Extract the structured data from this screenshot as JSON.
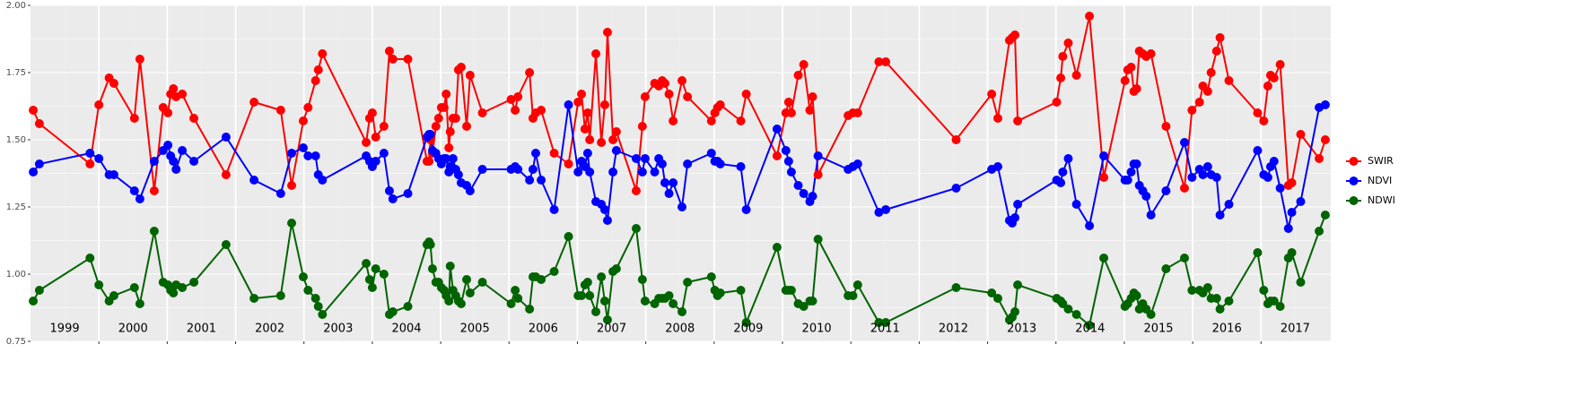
{
  "chart_data": {
    "type": "line",
    "x": [
      1999.04,
      1999.13,
      1999.87,
      2000.0,
      2000.15,
      2000.22,
      2000.52,
      2000.6,
      2000.81,
      2000.94,
      2001.01,
      2001.05,
      2001.09,
      2001.13,
      2001.22,
      2001.39,
      2001.86,
      2002.27,
      2002.66,
      2002.82,
      2002.99,
      2003.06,
      2003.17,
      2003.21,
      2003.27,
      2003.91,
      2003.96,
      2004.0,
      2004.05,
      2004.17,
      2004.25,
      2004.3,
      2004.52,
      2004.8,
      2004.83,
      2004.85,
      2004.88,
      2004.93,
      2004.97,
      2005.01,
      2005.05,
      2005.08,
      2005.12,
      2005.14,
      2005.18,
      2005.22,
      2005.26,
      2005.3,
      2005.38,
      2005.43,
      2005.61,
      2006.03,
      2006.09,
      2006.13,
      2006.3,
      2006.35,
      2006.39,
      2006.47,
      2006.66,
      2006.87,
      2007.01,
      2007.06,
      2007.11,
      2007.15,
      2007.18,
      2007.27,
      2007.35,
      2007.4,
      2007.44,
      2007.52,
      2007.57,
      2007.86,
      2007.95,
      2007.99,
      2008.13,
      2008.19,
      2008.24,
      2008.28,
      2008.34,
      2008.4,
      2008.53,
      2008.61,
      2008.96,
      2009.01,
      2009.05,
      2009.09,
      2009.39,
      2009.47,
      2009.92,
      2010.05,
      2010.09,
      2010.13,
      2010.23,
      2010.31,
      2010.4,
      2010.44,
      2010.52,
      2010.96,
      2011.03,
      2011.1,
      2011.41,
      2011.51,
      2012.54,
      2013.06,
      2013.15,
      2013.32,
      2013.36,
      2013.4,
      2013.44,
      2014.01,
      2014.07,
      2014.1,
      2014.18,
      2014.3,
      2014.49,
      2014.7,
      2015.01,
      2015.05,
      2015.1,
      2015.14,
      2015.18,
      2015.22,
      2015.27,
      2015.32,
      2015.39,
      2015.61,
      2015.88,
      2015.99,
      2016.1,
      2016.15,
      2016.22,
      2016.27,
      2016.35,
      2016.4,
      2016.53,
      2016.95,
      2017.04,
      2017.1,
      2017.14,
      2017.19,
      2017.28,
      2017.4,
      2017.45,
      2017.58,
      2017.85,
      2017.94
    ],
    "series": [
      {
        "name": "SWIR",
        "color": "#ff0000",
        "values": [
          1.61,
          1.56,
          1.41,
          1.63,
          1.73,
          1.71,
          1.58,
          1.8,
          1.31,
          1.62,
          1.6,
          1.67,
          1.69,
          1.66,
          1.67,
          1.58,
          1.37,
          1.64,
          1.61,
          1.33,
          1.57,
          1.62,
          1.72,
          1.76,
          1.82,
          1.49,
          1.58,
          1.6,
          1.51,
          1.55,
          1.83,
          1.8,
          1.8,
          1.42,
          1.42,
          1.5,
          1.45,
          1.55,
          1.58,
          1.62,
          1.62,
          1.67,
          1.47,
          1.53,
          1.58,
          1.58,
          1.76,
          1.77,
          1.55,
          1.74,
          1.6,
          1.65,
          1.61,
          1.66,
          1.75,
          1.58,
          1.6,
          1.61,
          1.45,
          1.41,
          1.64,
          1.67,
          1.54,
          1.6,
          1.5,
          1.82,
          1.49,
          1.63,
          1.9,
          1.5,
          1.53,
          1.31,
          1.55,
          1.66,
          1.71,
          1.7,
          1.72,
          1.71,
          1.67,
          1.57,
          1.72,
          1.66,
          1.57,
          1.6,
          1.62,
          1.63,
          1.57,
          1.67,
          1.44,
          1.6,
          1.64,
          1.6,
          1.74,
          1.78,
          1.61,
          1.66,
          1.37,
          1.59,
          1.6,
          1.6,
          1.79,
          1.79,
          1.5,
          1.67,
          1.58,
          1.87,
          1.88,
          1.89,
          1.57,
          1.64,
          1.73,
          1.81,
          1.86,
          1.74,
          1.96,
          1.36,
          1.72,
          1.76,
          1.77,
          1.68,
          1.69,
          1.83,
          1.82,
          1.81,
          1.82,
          1.55,
          1.32,
          1.61,
          1.64,
          1.7,
          1.68,
          1.75,
          1.83,
          1.88,
          1.72,
          1.6,
          1.57,
          1.7,
          1.74,
          1.73,
          1.78,
          1.33,
          1.34,
          1.52,
          1.43,
          1.5
        ]
      },
      {
        "name": "NDVI",
        "color": "#0000ff",
        "values": [
          1.38,
          1.41,
          1.45,
          1.43,
          1.37,
          1.37,
          1.31,
          1.28,
          1.42,
          1.46,
          1.48,
          1.44,
          1.42,
          1.39,
          1.46,
          1.42,
          1.51,
          1.35,
          1.3,
          1.45,
          1.47,
          1.44,
          1.44,
          1.37,
          1.35,
          1.44,
          1.42,
          1.4,
          1.42,
          1.45,
          1.31,
          1.28,
          1.3,
          1.51,
          1.52,
          1.52,
          1.46,
          1.45,
          1.43,
          1.41,
          1.43,
          1.43,
          1.38,
          1.4,
          1.43,
          1.39,
          1.37,
          1.34,
          1.33,
          1.31,
          1.39,
          1.39,
          1.4,
          1.39,
          1.35,
          1.39,
          1.45,
          1.35,
          1.24,
          1.63,
          1.38,
          1.42,
          1.4,
          1.45,
          1.38,
          1.27,
          1.26,
          1.24,
          1.2,
          1.38,
          1.46,
          1.43,
          1.38,
          1.43,
          1.38,
          1.43,
          1.41,
          1.34,
          1.3,
          1.34,
          1.25,
          1.41,
          1.45,
          1.42,
          1.42,
          1.41,
          1.4,
          1.24,
          1.54,
          1.46,
          1.42,
          1.38,
          1.33,
          1.3,
          1.27,
          1.29,
          1.44,
          1.39,
          1.4,
          1.41,
          1.23,
          1.24,
          1.32,
          1.39,
          1.4,
          1.2,
          1.19,
          1.21,
          1.26,
          1.35,
          1.34,
          1.38,
          1.43,
          1.26,
          1.18,
          1.44,
          1.35,
          1.35,
          1.38,
          1.41,
          1.41,
          1.33,
          1.31,
          1.29,
          1.22,
          1.31,
          1.49,
          1.36,
          1.39,
          1.37,
          1.4,
          1.37,
          1.36,
          1.22,
          1.26,
          1.46,
          1.37,
          1.36,
          1.4,
          1.42,
          1.32,
          1.17,
          1.23,
          1.27,
          1.62,
          1.63
        ]
      },
      {
        "name": "NDWI",
        "color": "#006400",
        "values": [
          0.9,
          0.94,
          1.06,
          0.96,
          0.9,
          0.92,
          0.95,
          0.89,
          1.16,
          0.97,
          0.96,
          0.94,
          0.93,
          0.96,
          0.95,
          0.97,
          1.11,
          0.91,
          0.92,
          1.19,
          0.99,
          0.94,
          0.91,
          0.88,
          0.85,
          1.04,
          0.98,
          0.95,
          1.02,
          1.0,
          0.85,
          0.86,
          0.88,
          1.11,
          1.12,
          1.11,
          1.02,
          0.97,
          0.97,
          0.95,
          0.94,
          0.92,
          0.9,
          1.03,
          0.94,
          0.92,
          0.9,
          0.89,
          0.98,
          0.93,
          0.97,
          0.89,
          0.94,
          0.91,
          0.87,
          0.99,
          0.99,
          0.98,
          1.01,
          1.14,
          0.92,
          0.92,
          0.96,
          0.97,
          0.92,
          0.86,
          0.99,
          0.9,
          0.83,
          1.01,
          1.02,
          1.17,
          0.98,
          0.9,
          0.89,
          0.91,
          0.91,
          0.91,
          0.92,
          0.89,
          0.86,
          0.97,
          0.99,
          0.94,
          0.92,
          0.93,
          0.94,
          0.82,
          1.1,
          0.94,
          0.94,
          0.94,
          0.89,
          0.88,
          0.9,
          0.9,
          1.13,
          0.92,
          0.92,
          0.96,
          0.82,
          0.82,
          0.95,
          0.93,
          0.91,
          0.83,
          0.84,
          0.86,
          0.96,
          0.91,
          0.9,
          0.89,
          0.87,
          0.85,
          0.81,
          1.06,
          0.88,
          0.89,
          0.91,
          0.93,
          0.92,
          0.87,
          0.89,
          0.87,
          0.85,
          1.02,
          1.06,
          0.94,
          0.94,
          0.93,
          0.95,
          0.91,
          0.91,
          0.87,
          0.9,
          1.08,
          0.94,
          0.89,
          0.9,
          0.9,
          0.88,
          1.06,
          1.08,
          0.97,
          1.16,
          1.22
        ]
      }
    ],
    "xlim": [
      1999,
      2018.02
    ],
    "xticks": [
      {
        "value": 1999.5,
        "label": "1999"
      },
      {
        "value": 2000.5,
        "label": "2000"
      },
      {
        "value": 2001.5,
        "label": "2001"
      },
      {
        "value": 2002.5,
        "label": "2002"
      },
      {
        "value": 2003.5,
        "label": "2003"
      },
      {
        "value": 2004.5,
        "label": "2004"
      },
      {
        "value": 2005.5,
        "label": "2005"
      },
      {
        "value": 2006.5,
        "label": "2006"
      },
      {
        "value": 2007.5,
        "label": "2007"
      },
      {
        "value": 2008.5,
        "label": "2008"
      },
      {
        "value": 2009.5,
        "label": "2009"
      },
      {
        "value": 2010.5,
        "label": "2010"
      },
      {
        "value": 2011.5,
        "label": "2011"
      },
      {
        "value": 2012.5,
        "label": "2012"
      },
      {
        "value": 2013.5,
        "label": "2013"
      },
      {
        "value": 2014.5,
        "label": "2014"
      },
      {
        "value": 2015.5,
        "label": "2015"
      },
      {
        "value": 2016.5,
        "label": "2016"
      },
      {
        "value": 2017.5,
        "label": "2017"
      }
    ],
    "ylim": [
      0.75,
      2.0
    ],
    "yticks": [
      {
        "value": 0.75,
        "label": "0.75"
      },
      {
        "value": 1.0,
        "label": "1.00"
      },
      {
        "value": 1.25,
        "label": "1.25"
      },
      {
        "value": 1.5,
        "label": "1.50"
      },
      {
        "value": 1.75,
        "label": "1.75"
      },
      {
        "value": 2.0,
        "label": "2.00"
      }
    ],
    "grid": true,
    "legend": "right"
  }
}
